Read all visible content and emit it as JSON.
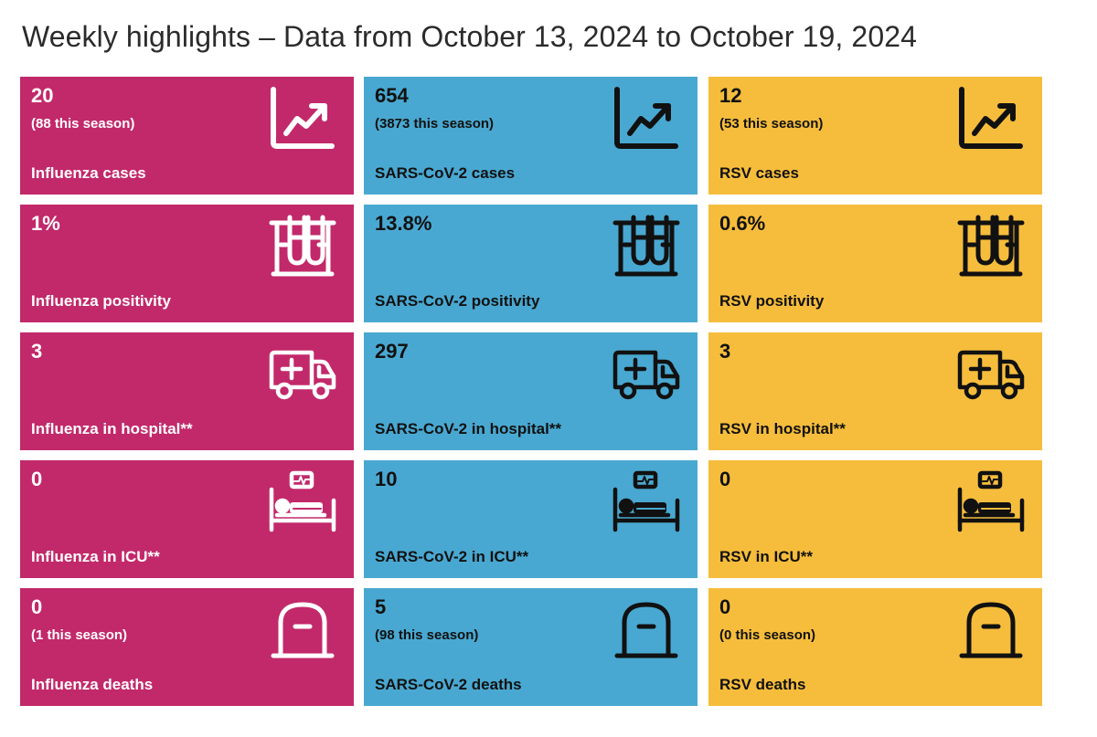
{
  "title": "Weekly highlights – Data from October 13, 2024 to October 19, 2024",
  "colors": {
    "influenza": "#c2296a",
    "sars_cov_2": "#49a8d1",
    "rsv": "#f6bd3c"
  },
  "rows": [
    {
      "icon": "trend-chart-icon",
      "influenza": {
        "value": "20",
        "season": "(88 this season)",
        "label": "Influenza cases"
      },
      "sars_cov_2": {
        "value": "654",
        "season": "(3873 this season)",
        "label": "SARS-CoV-2 cases"
      },
      "rsv": {
        "value": "12",
        "season": "(53 this season)",
        "label": "RSV cases"
      }
    },
    {
      "icon": "test-tubes-icon",
      "influenza": {
        "value": "1%",
        "label": "Influenza positivity"
      },
      "sars_cov_2": {
        "value": "13.8%",
        "label": "SARS-CoV-2 positivity"
      },
      "rsv": {
        "value": "0.6%",
        "label": "RSV positivity"
      }
    },
    {
      "icon": "ambulance-icon",
      "influenza": {
        "value": "3",
        "label": "Influenza in hospital**"
      },
      "sars_cov_2": {
        "value": "297",
        "label": "SARS-CoV-2 in hospital**"
      },
      "rsv": {
        "value": "3",
        "label": "RSV in hospital**"
      }
    },
    {
      "icon": "icu-bed-icon",
      "influenza": {
        "value": "0",
        "label": "Influenza in ICU**"
      },
      "sars_cov_2": {
        "value": "10",
        "label": "SARS-CoV-2 in ICU**"
      },
      "rsv": {
        "value": "0",
        "label": "RSV in ICU**"
      }
    },
    {
      "icon": "tombstone-icon",
      "influenza": {
        "value": "0",
        "season": "(1 this season)",
        "label": "Influenza deaths"
      },
      "sars_cov_2": {
        "value": "5",
        "season": "(98 this season)",
        "label": "SARS-CoV-2 deaths"
      },
      "rsv": {
        "value": "0",
        "season": "(0 this season)",
        "label": "RSV deaths"
      }
    }
  ]
}
